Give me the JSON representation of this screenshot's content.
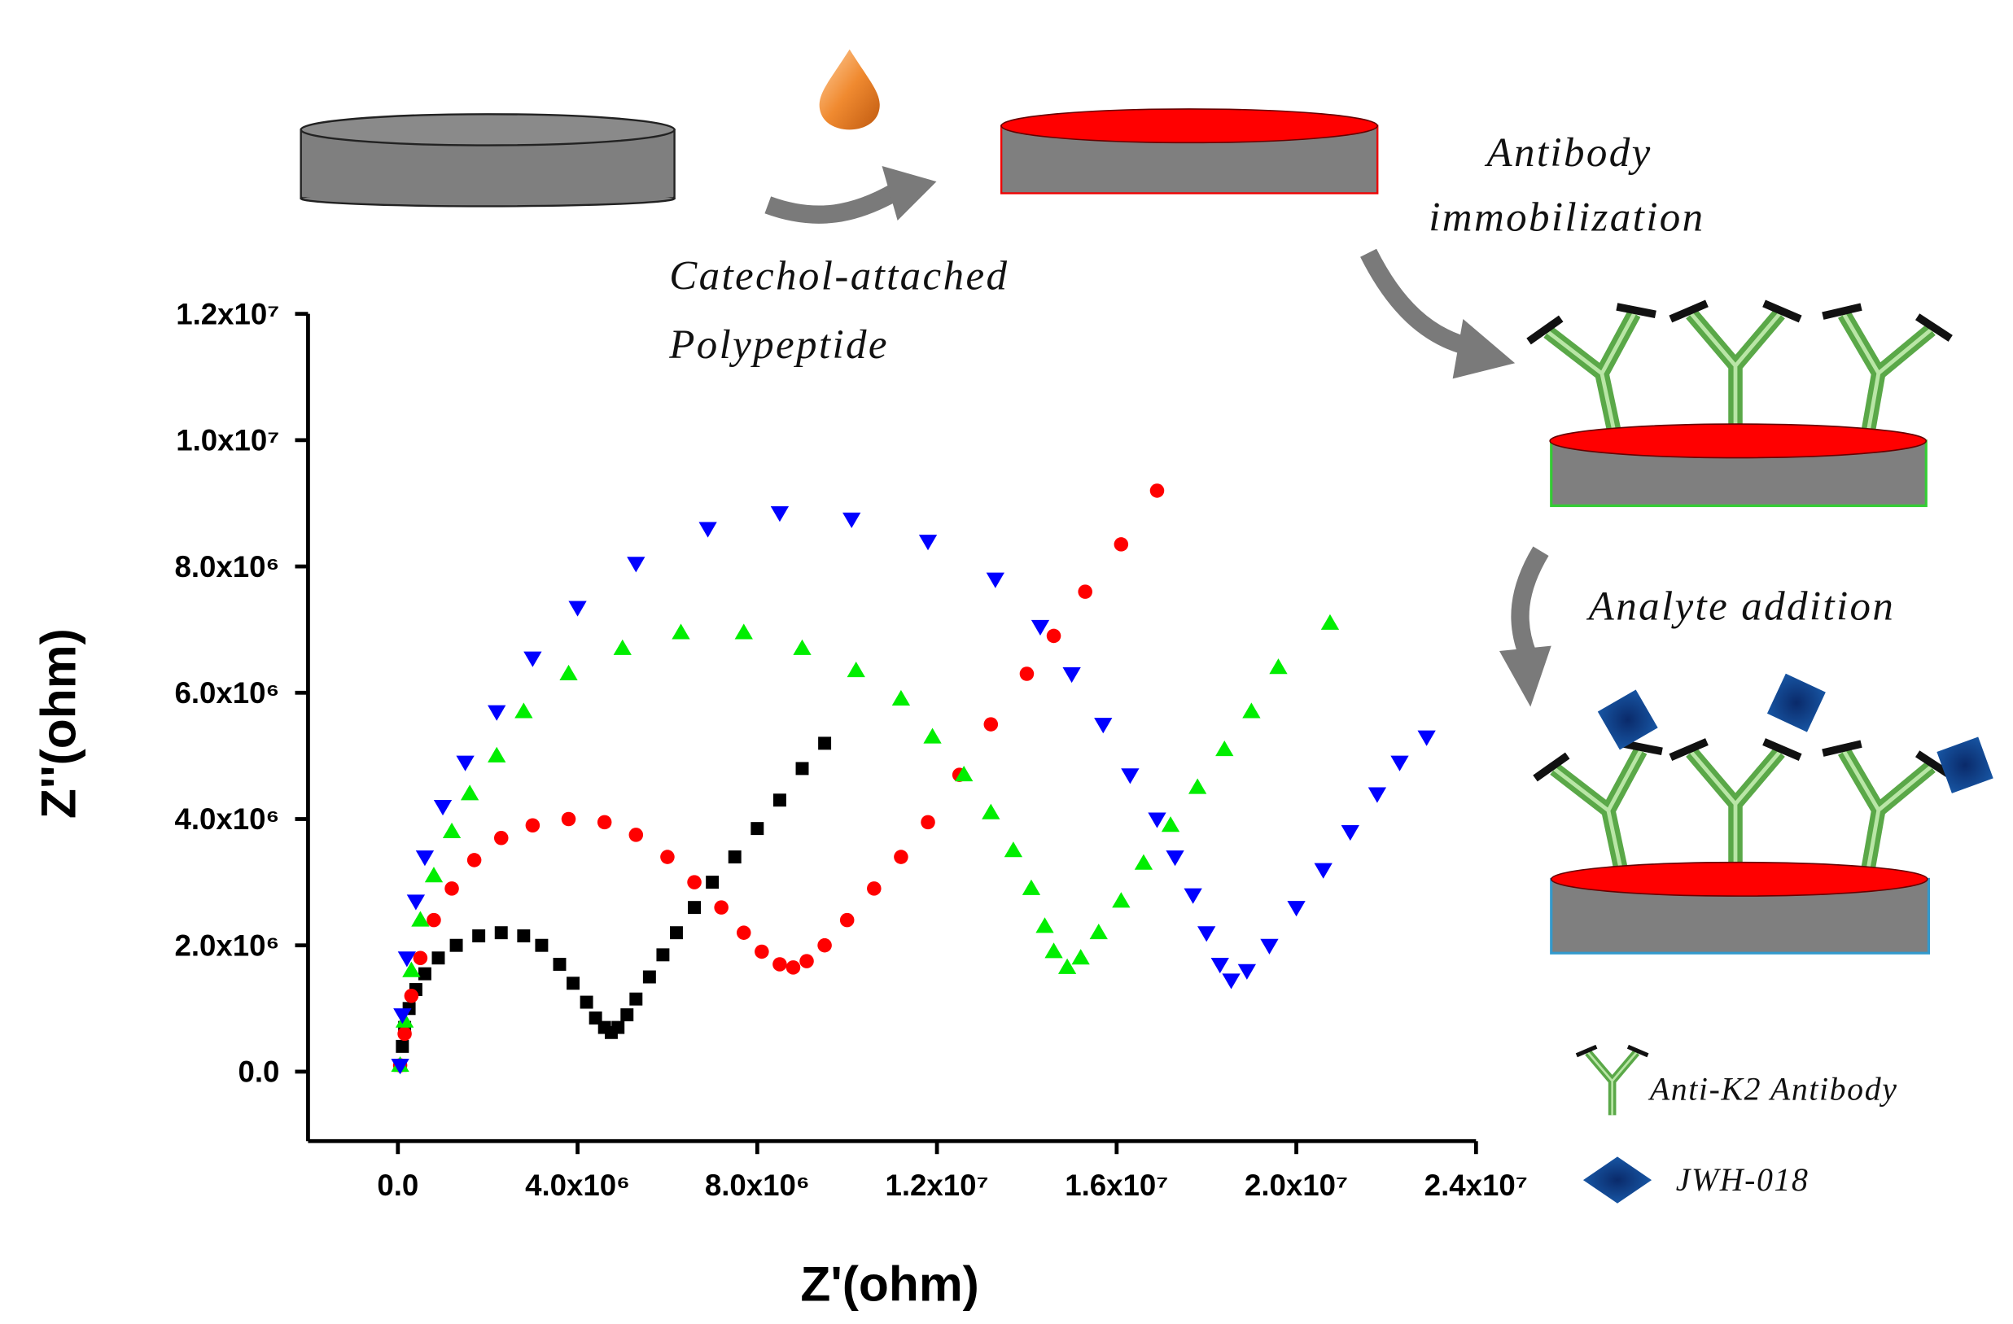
{
  "chart_data": {
    "type": "scatter",
    "xlabel": "Z'(ohm)",
    "ylabel": "Z''(ohm)",
    "xlim": [
      -2000000,
      24000000
    ],
    "ylim": [
      -1100000,
      12000000
    ],
    "xticks": [
      {
        "value": 0,
        "label": "0.0"
      },
      {
        "value": 4000000,
        "label": "4.0x10⁶"
      },
      {
        "value": 8000000,
        "label": "8.0x10⁶"
      },
      {
        "value": 12000000,
        "label": "1.2x10⁷"
      },
      {
        "value": 16000000,
        "label": "1.6x10⁷"
      },
      {
        "value": 20000000,
        "label": "2.0x10⁷"
      },
      {
        "value": 24000000,
        "label": "2.4x10⁷"
      }
    ],
    "yticks": [
      {
        "value": 0,
        "label": "0.0"
      },
      {
        "value": 2000000,
        "label": "2.0x10⁶"
      },
      {
        "value": 4000000,
        "label": "4.0x10⁶"
      },
      {
        "value": 6000000,
        "label": "6.0x10⁶"
      },
      {
        "value": 8000000,
        "label": "8.0x10⁶"
      },
      {
        "value": 10000000,
        "label": "1.0x10⁷"
      },
      {
        "value": 12000000,
        "label": "1.2x10⁷"
      }
    ],
    "series": [
      {
        "color": "#000000",
        "marker": "square",
        "x": [
          50000.0,
          100000.0,
          150000.0,
          250000.0,
          400000.0,
          600000.0,
          900000.0,
          1300000.0,
          1800000.0,
          2300000.0,
          2800000.0,
          3200000.0,
          3600000.0,
          3900000.0,
          4200000.0,
          4400000.0,
          4600000.0,
          4750000.0,
          4900000.0,
          5100000.0,
          5300000.0,
          5600000.0,
          5900000.0,
          6200000.0,
          6600000.0,
          7000000.0,
          7500000.0,
          8000000.0,
          8500000.0,
          9000000.0,
          9500000.0
        ],
        "values": [
          100000.0,
          400000.0,
          700000.0,
          1000000.0,
          1300000.0,
          1550000.0,
          1800000.0,
          2000000.0,
          2150000.0,
          2200000.0,
          2150000.0,
          2000000.0,
          1700000.0,
          1400000.0,
          1100000.0,
          850000.0,
          700000.0,
          620000.0,
          700000.0,
          900000.0,
          1150000.0,
          1500000.0,
          1850000.0,
          2200000.0,
          2600000.0,
          3000000.0,
          3400000.0,
          3850000.0,
          4300000.0,
          4800000.0,
          5200000.0
        ]
      },
      {
        "color": "#ff0000",
        "marker": "circle",
        "x": [
          50000.0,
          150000.0,
          300000.0,
          500000.0,
          800000.0,
          1200000.0,
          1700000.0,
          2300000.0,
          3000000.0,
          3800000.0,
          4600000.0,
          5300000.0,
          6000000.0,
          6600000.0,
          7200000.0,
          7700000.0,
          8100000.0,
          8500000.0,
          8800000.0,
          9100000.0,
          9500000.0,
          10000000.0,
          10600000.0,
          11200000.0,
          11800000.0,
          12500000.0,
          13200000.0,
          14000000.0,
          14600000.0,
          15300000.0,
          16100000.0,
          16900000.0
        ],
        "values": [
          100000.0,
          600000.0,
          1200000.0,
          1800000.0,
          2400000.0,
          2900000.0,
          3350000.0,
          3700000.0,
          3900000.0,
          4000000.0,
          3950000.0,
          3750000.0,
          3400000.0,
          3000000.0,
          2600000.0,
          2200000.0,
          1900000.0,
          1700000.0,
          1650000.0,
          1750000.0,
          2000000.0,
          2400000.0,
          2900000.0,
          3400000.0,
          3950000.0,
          4700000.0,
          5500000.0,
          6300000.0,
          6900000.0,
          7600000.0,
          8350000.0,
          9200000.0
        ]
      },
      {
        "color": "#00ee00",
        "marker": "triangle-up",
        "x": [
          50000.0,
          150000.0,
          300000.0,
          500000.0,
          800000.0,
          1200000.0,
          1600000.0,
          2200000.0,
          2800000.0,
          3800000.0,
          5000000.0,
          6300000.0,
          7700000.0,
          9000000.0,
          10200000.0,
          11200000.0,
          11900000.0,
          12600000.0,
          13200000.0,
          13700000.0,
          14100000.0,
          14400000.0,
          14600000.0,
          14900000.0,
          15200000.0,
          15600000.0,
          16100000.0,
          16600000.0,
          17200000.0,
          17800000.0,
          18400000.0,
          19000000.0,
          19600000.0,
          20750000.0
        ],
        "values": [
          100000.0,
          800000.0,
          1600000.0,
          2400000.0,
          3100000.0,
          3800000.0,
          4400000.0,
          5000000.0,
          5700000.0,
          6300000.0,
          6700000.0,
          6950000.0,
          6950000.0,
          6700000.0,
          6350000.0,
          5900000.0,
          5300000.0,
          4700000.0,
          4100000.0,
          3500000.0,
          2900000.0,
          2300000.0,
          1900000.0,
          1650000.0,
          1800000.0,
          2200000.0,
          2700000.0,
          3300000.0,
          3900000.0,
          4500000.0,
          5100000.0,
          5700000.0,
          6400000.0,
          7100000.0
        ]
      },
      {
        "color": "#0000ff",
        "marker": "triangle-down",
        "x": [
          50000.0,
          100000.0,
          200000.0,
          400000.0,
          600000.0,
          1000000.0,
          1500000.0,
          2200000.0,
          3000000.0,
          4000000.0,
          5300000.0,
          6900000.0,
          8500000.0,
          10100000.0,
          11800000.0,
          13300000.0,
          14300000.0,
          15000000.0,
          15700000.0,
          16300000.0,
          16900000.0,
          17300000.0,
          17700000.0,
          18000000.0,
          18300000.0,
          18550000.0,
          18900000.0,
          19400000.0,
          20000000.0,
          20600000.0,
          21200000.0,
          21800000.0,
          22300000.0,
          22900000.0
        ],
        "values": [
          100000.0,
          900000.0,
          1800000.0,
          2700000.0,
          3400000.0,
          4200000.0,
          4900000.0,
          5700000.0,
          6550000.0,
          7350000.0,
          8050000.0,
          8600000.0,
          8850000.0,
          8750000.0,
          8400000.0,
          7800000.0,
          7050000.0,
          6300000.0,
          5500000.0,
          4700000.0,
          4000000.0,
          3400000.0,
          2800000.0,
          2200000.0,
          1700000.0,
          1450000.0,
          1600000.0,
          2000000.0,
          2600000.0,
          3200000.0,
          3800000.0,
          4400000.0,
          4900000.0,
          5300000.0
        ]
      }
    ]
  },
  "diagram": {
    "steps": [
      [
        "Catechol-attached",
        "Polypeptide"
      ],
      [
        "Antibody",
        "immobilization"
      ],
      [
        "Analyte addition"
      ]
    ],
    "legend": [
      "Anti-K2 Antibody",
      "JWH-018"
    ]
  }
}
